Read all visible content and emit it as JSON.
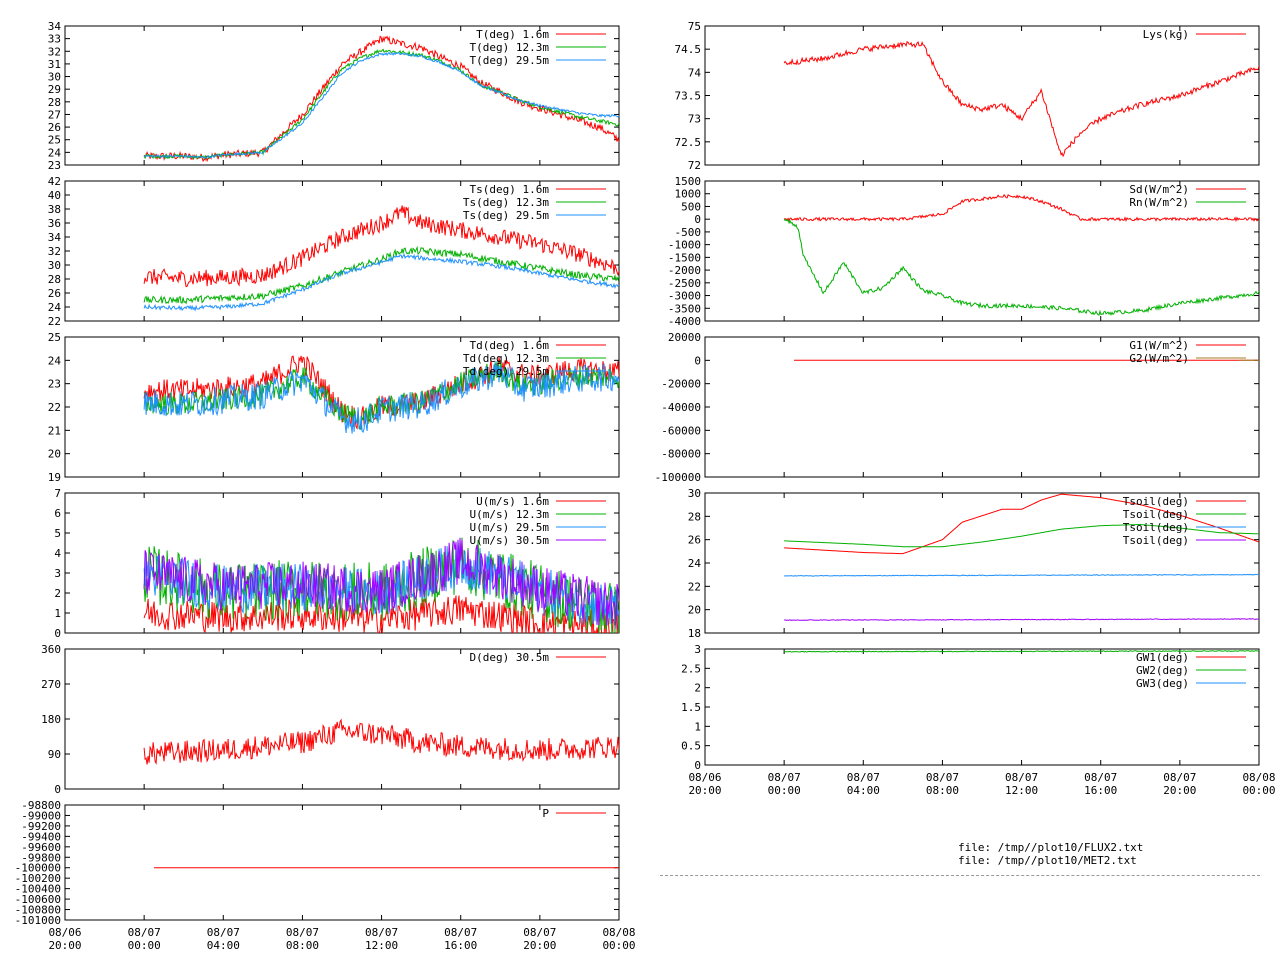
{
  "footer": {
    "file1": "file: /tmp//plot10/FLUX2.txt",
    "file2": "file: /tmp//plot10/MET2.txt"
  },
  "time_ticks": [
    [
      "08/06",
      "20:00"
    ],
    [
      "08/07",
      "00:00"
    ],
    [
      "08/07",
      "04:00"
    ],
    [
      "08/07",
      "08:00"
    ],
    [
      "08/07",
      "12:00"
    ],
    [
      "08/07",
      "16:00"
    ],
    [
      "08/07",
      "20:00"
    ],
    [
      "08/08",
      "00:00"
    ]
  ],
  "colors": {
    "red": "#ff0000",
    "green": "#00b000",
    "blue": "#1e90ff",
    "purple": "#a000ff",
    "olive": "#a08020"
  },
  "chart_data": [
    {
      "id": "T",
      "type": "line",
      "xlim": [
        0,
        28
      ],
      "ylim": [
        23,
        34
      ],
      "yticks": [
        "23",
        "24",
        "25",
        "26",
        "27",
        "28",
        "29",
        "30",
        "31",
        "32",
        "33",
        "34"
      ],
      "series": [
        {
          "name": "T(deg)  1.6m",
          "color": "#ff0000",
          "x": [
            4,
            6,
            7,
            8,
            10,
            12,
            13.5,
            14,
            15,
            16,
            17,
            18,
            19,
            20,
            21,
            22,
            23,
            24,
            25,
            26,
            27,
            28
          ],
          "y": [
            23.7,
            23.7,
            23.6,
            23.8,
            24,
            27,
            30,
            31,
            32,
            33,
            32.6,
            32.3,
            31.5,
            30.8,
            29.5,
            28.8,
            28,
            27.5,
            27,
            26.5,
            26,
            25
          ],
          "noise": 0.3
        },
        {
          "name": "T(deg) 12.3m",
          "color": "#00b000",
          "x": [
            4,
            6,
            7,
            8,
            10,
            12,
            13.5,
            14,
            15,
            16,
            17,
            18,
            19,
            20,
            21,
            22,
            23,
            24,
            25,
            26,
            27,
            28
          ],
          "y": [
            23.7,
            23.7,
            23.6,
            23.8,
            24,
            26.6,
            29.7,
            30.6,
            31.5,
            32.1,
            31.9,
            31.7,
            31.2,
            30.5,
            29.3,
            28.8,
            28.1,
            27.6,
            27.2,
            26.8,
            26.5,
            26.2
          ],
          "noise": 0.15
        },
        {
          "name": "T(deg) 29.5m",
          "color": "#1e90ff",
          "x": [
            4,
            6,
            7,
            8,
            10,
            12,
            13.5,
            14,
            15,
            16,
            17,
            18,
            19,
            20,
            21,
            22,
            23,
            24,
            25,
            26,
            27,
            28
          ],
          "y": [
            23.7,
            23.7,
            23.6,
            23.8,
            24,
            26.3,
            29.3,
            30.3,
            31.3,
            31.8,
            31.8,
            31.6,
            31.1,
            30.4,
            29.3,
            28.7,
            28.1,
            27.7,
            27.4,
            27.1,
            26.9,
            26.9
          ],
          "noise": 0.1
        }
      ]
    },
    {
      "id": "Ts",
      "type": "line",
      "xlim": [
        0,
        28
      ],
      "ylim": [
        22,
        42
      ],
      "yticks": [
        "22",
        "24",
        "26",
        "28",
        "30",
        "32",
        "34",
        "36",
        "38",
        "40",
        "42"
      ],
      "series": [
        {
          "name": "Ts(deg)  1.6m",
          "color": "#ff0000",
          "x": [
            4,
            6,
            8,
            10,
            12,
            14,
            16,
            17,
            18,
            20,
            22,
            24,
            26,
            28
          ],
          "y": [
            28.3,
            28.1,
            28.2,
            28.5,
            31,
            34,
            36,
            37.5,
            36,
            35,
            34,
            33,
            31.5,
            29.5
          ],
          "noise": 1.2
        },
        {
          "name": "Ts(deg) 12.3m",
          "color": "#00b000",
          "x": [
            4,
            6,
            8,
            10,
            12,
            14,
            16,
            17,
            18,
            20,
            22,
            24,
            26,
            28
          ],
          "y": [
            25,
            25,
            25.3,
            25.6,
            27,
            29,
            30.8,
            32,
            32,
            31.5,
            30.5,
            29.5,
            28.5,
            28
          ],
          "noise": 0.5
        },
        {
          "name": "Ts(deg) 29.5m",
          "color": "#1e90ff",
          "x": [
            4,
            6,
            8,
            10,
            12,
            14,
            16,
            17,
            18,
            20,
            22,
            24,
            26,
            28
          ],
          "y": [
            24,
            23.8,
            24,
            24.5,
            26.5,
            28.8,
            30.4,
            31.3,
            31,
            30.5,
            29.8,
            28.8,
            27.8,
            27
          ],
          "noise": 0.3
        }
      ]
    },
    {
      "id": "Td",
      "type": "line",
      "xlim": [
        0,
        28
      ],
      "ylim": [
        19,
        25
      ],
      "yticks": [
        "19",
        "20",
        "21",
        "22",
        "23",
        "24",
        "25"
      ],
      "series": [
        {
          "name": "Td(deg)  1.6m",
          "color": "#ff0000",
          "x": [
            4,
            6,
            8,
            10,
            12,
            14,
            15,
            16,
            18,
            20,
            22,
            23,
            24,
            25,
            26,
            28
          ],
          "y": [
            22.7,
            22.7,
            22.8,
            23,
            24,
            21.8,
            21.5,
            22,
            22.2,
            23,
            23.7,
            23.4,
            23.3,
            23.5,
            23.6,
            23.5
          ],
          "noise": 0.5
        },
        {
          "name": "Td(deg) 12.3m",
          "color": "#00b000",
          "x": [
            4,
            6,
            8,
            10,
            12,
            14,
            15,
            16,
            18,
            20,
            22,
            23,
            24,
            25,
            26,
            28
          ],
          "y": [
            22.2,
            22.1,
            22.3,
            22.5,
            23.3,
            21.7,
            21.5,
            22,
            22.2,
            23,
            23.6,
            22.9,
            23,
            23.2,
            23.3,
            23.3
          ],
          "noise": 0.5
        },
        {
          "name": "Td(deg) 29.5m",
          "color": "#1e90ff",
          "x": [
            4,
            6,
            8,
            10,
            12,
            14,
            15,
            16,
            18,
            20,
            22,
            23,
            24,
            25,
            26,
            28
          ],
          "y": [
            22.2,
            22.1,
            22.3,
            22.5,
            23.2,
            21.5,
            21.4,
            21.9,
            22.1,
            22.9,
            23.5,
            22.8,
            22.9,
            23.1,
            23.2,
            23.3
          ],
          "noise": 0.6
        }
      ]
    },
    {
      "id": "U",
      "type": "line",
      "xlim": [
        0,
        28
      ],
      "ylim": [
        0,
        7
      ],
      "yticks": [
        "0",
        "1",
        "2",
        "3",
        "4",
        "5",
        "6",
        "7"
      ],
      "series": [
        {
          "name": "U(m/s)  1.6m",
          "color": "#ff0000",
          "x": [
            4,
            8,
            12,
            16,
            20,
            24,
            28
          ],
          "y": [
            1,
            0.8,
            0.9,
            0.7,
            1.2,
            0.5,
            0.3
          ],
          "noise": 0.8
        },
        {
          "name": "U(m/s) 12.3m",
          "color": "#00b000",
          "x": [
            4,
            8,
            12,
            16,
            20,
            24,
            28
          ],
          "y": [
            3,
            2,
            2.2,
            2,
            3.5,
            2,
            1
          ],
          "noise": 1.5
        },
        {
          "name": "U(m/s) 29.5m",
          "color": "#1e90ff",
          "x": [
            4,
            8,
            12,
            16,
            20,
            24,
            28
          ],
          "y": [
            3,
            2.2,
            2.3,
            2,
            3.5,
            2.1,
            1.2
          ],
          "noise": 1.2
        },
        {
          "name": "U(m/s) 30.5m",
          "color": "#a000ff",
          "x": [
            4,
            8,
            12,
            16,
            20,
            24,
            28
          ],
          "y": [
            3,
            2.3,
            2.4,
            2.1,
            3.6,
            2.2,
            1.3
          ],
          "noise": 1.2
        }
      ]
    },
    {
      "id": "D",
      "type": "line",
      "xlim": [
        0,
        28
      ],
      "ylim": [
        0,
        360
      ],
      "yticks": [
        "0",
        "90",
        "180",
        "270",
        "360"
      ],
      "series": [
        {
          "name": "D(deg)  30.5m",
          "color": "#ff0000",
          "x": [
            4,
            8,
            10,
            12,
            14,
            16,
            18,
            20,
            24,
            28
          ],
          "y": [
            90,
            100,
            110,
            120,
            150,
            140,
            120,
            110,
            100,
            110
          ],
          "noise": 30
        }
      ]
    },
    {
      "id": "P",
      "type": "line",
      "xlim": [
        0,
        28
      ],
      "ylim": [
        -101000,
        -98800
      ],
      "yticks": [
        "-101000",
        "-100800",
        "-100600",
        "-100400",
        "-100200",
        "-100000",
        "-99800",
        "-99600",
        "-99400",
        "-99200",
        "-99000",
        "-98800"
      ],
      "series": [
        {
          "name": "P",
          "color": "#ff0000",
          "x": [
            4.5,
            28
          ],
          "y": [
            -100000,
            -100000
          ],
          "noise": 0
        }
      ]
    },
    {
      "id": "Lys",
      "type": "line",
      "xlim": [
        0,
        28
      ],
      "ylim": [
        72,
        75
      ],
      "yticks": [
        "72",
        "72.5",
        "73",
        "73.5",
        "74",
        "74.5",
        "75"
      ],
      "series": [
        {
          "name": "Lys(kg)",
          "color": "#ff0000",
          "x": [
            4,
            6,
            8,
            10,
            11,
            12,
            13,
            14,
            15,
            16,
            17,
            18,
            19,
            20,
            22,
            24,
            26,
            28
          ],
          "y": [
            74.2,
            74.3,
            74.5,
            74.6,
            74.6,
            73.8,
            73.3,
            73.2,
            73.3,
            73,
            73.6,
            72.2,
            72.7,
            73,
            73.3,
            73.5,
            73.8,
            74.1
          ],
          "noise": 0.06
        }
      ]
    },
    {
      "id": "Sd",
      "type": "line",
      "xlim": [
        0,
        28
      ],
      "ylim": [
        -4000,
        1500
      ],
      "yticks": [
        "-4000",
        "-3500",
        "-3000",
        "-2500",
        "-2000",
        "-1500",
        "-1000",
        "-500",
        "0",
        "500",
        "1000",
        "1500"
      ],
      "series": [
        {
          "name": "Sd(W/m^2)",
          "color": "#ff0000",
          "x": [
            4,
            10,
            12,
            13,
            14,
            15,
            16,
            17,
            18,
            19,
            20,
            28
          ],
          "y": [
            0,
            0,
            200,
            700,
            800,
            900,
            900,
            700,
            400,
            0,
            0,
            0
          ],
          "noise": 60
        },
        {
          "name": "Rn(W/m^2)",
          "color": "#00b000",
          "x": [
            4,
            4.7,
            5,
            6,
            7,
            8,
            9,
            10,
            11,
            12,
            13,
            14,
            16,
            18,
            20,
            22,
            24,
            26,
            28
          ],
          "y": [
            0,
            -300,
            -1500,
            -2900,
            -1700,
            -2900,
            -2700,
            -1900,
            -2800,
            -3000,
            -3300,
            -3400,
            -3400,
            -3500,
            -3700,
            -3600,
            -3300,
            -3100,
            -2900
          ],
          "noise": 80
        }
      ]
    },
    {
      "id": "G",
      "type": "line",
      "xlim": [
        0,
        28
      ],
      "ylim": [
        -100000,
        20000
      ],
      "yticks": [
        "-100000",
        "-80000",
        "-60000",
        "-40000",
        "-20000",
        "0",
        "20000"
      ],
      "series": [
        {
          "name": "G1(W/m^2)",
          "color": "#ff0000",
          "x": [
            4.5,
            28
          ],
          "y": [
            0,
            0
          ],
          "noise": 0
        },
        {
          "name": "G2(W/m^2)",
          "color": "#a08020",
          "x": [
            27,
            28
          ],
          "y": [
            0,
            0
          ],
          "noise": 0
        }
      ]
    },
    {
      "id": "Tsoil",
      "type": "line",
      "xlim": [
        0,
        28
      ],
      "ylim": [
        18,
        30
      ],
      "yticks": [
        "18",
        "20",
        "22",
        "24",
        "26",
        "28",
        "30"
      ],
      "series": [
        {
          "name": "Tsoil(deg)",
          "color": "#ff0000",
          "x": [
            4,
            6,
            8,
            10,
            12,
            13,
            15,
            16,
            17,
            18,
            20,
            22,
            24,
            26,
            28
          ],
          "y": [
            25.3,
            25.1,
            24.9,
            24.8,
            26,
            27.5,
            28.6,
            28.6,
            29.4,
            29.9,
            29.6,
            29,
            28.1,
            27,
            25.8
          ],
          "noise": 0
        },
        {
          "name": "Tsoil(deg)",
          "color": "#00b000",
          "x": [
            4,
            8,
            10,
            12,
            14,
            16,
            18,
            20,
            22,
            24,
            26,
            28
          ],
          "y": [
            25.9,
            25.6,
            25.4,
            25.4,
            25.8,
            26.3,
            26.9,
            27.2,
            27.3,
            27,
            26.6,
            26.5
          ],
          "noise": 0
        },
        {
          "name": "Tsoil(deg)",
          "color": "#1e90ff",
          "x": [
            4,
            28
          ],
          "y": [
            22.9,
            23
          ],
          "noise": 0.03
        },
        {
          "name": "Tsoil(deg)",
          "color": "#a000ff",
          "x": [
            4,
            28
          ],
          "y": [
            19.1,
            19.2
          ],
          "noise": 0.03
        }
      ]
    },
    {
      "id": "GW",
      "type": "line",
      "xlim": [
        0,
        28
      ],
      "ylim": [
        0,
        3
      ],
      "yticks": [
        "0",
        "0.5",
        "1",
        "1.5",
        "2",
        "2.5",
        "3"
      ],
      "series": [
        {
          "name": "GW1(deg)",
          "color": "#ff0000",
          "x": [],
          "y": [],
          "noise": 0
        },
        {
          "name": "GW2(deg)",
          "color": "#00b000",
          "x": [
            4,
            28
          ],
          "y": [
            2.93,
            2.95
          ],
          "noise": 0.01
        },
        {
          "name": "GW3(deg)",
          "color": "#1e90ff",
          "x": [],
          "y": [],
          "noise": 0
        }
      ]
    }
  ]
}
